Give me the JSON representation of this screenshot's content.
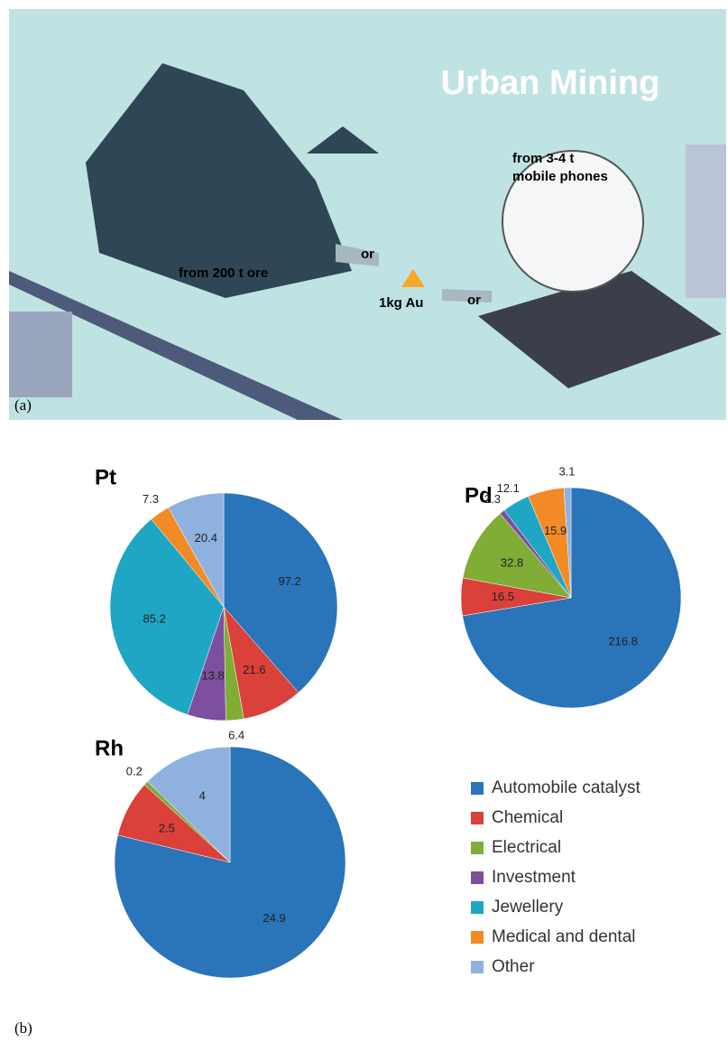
{
  "illustration": {
    "title": "Urban Mining",
    "phones_line1": "from 3-4 t",
    "phones_line2": "mobile phones",
    "ore": "from 200 t ore",
    "or1": "or",
    "gold": "1kg Au",
    "or2": "or",
    "panel": "(a)"
  },
  "panel_b": "(b)",
  "legend": {
    "categories": [
      "Automobile catalyst",
      "Chemical",
      "Electrical",
      "Investment",
      "Jewellery",
      "Medical and dental",
      "Other"
    ],
    "colors": [
      "#2a74b9",
      "#d9413a",
      "#7fad35",
      "#7d4f9e",
      "#1fa6c4",
      "#f28b25",
      "#8fb1df"
    ]
  },
  "chart_data": [
    {
      "type": "pie",
      "title": "Pt",
      "values": [
        97.2,
        21.6,
        6.4,
        13.8,
        85.2,
        7.3,
        20.4
      ]
    },
    {
      "type": "pie",
      "title": "Pd",
      "values": [
        216.8,
        16.5,
        32.8,
        2.3,
        12.1,
        15.9,
        3.1
      ]
    },
    {
      "type": "pie",
      "title": "Rh",
      "values": [
        24.9,
        2.5,
        0.2,
        null,
        null,
        null,
        4
      ]
    }
  ]
}
